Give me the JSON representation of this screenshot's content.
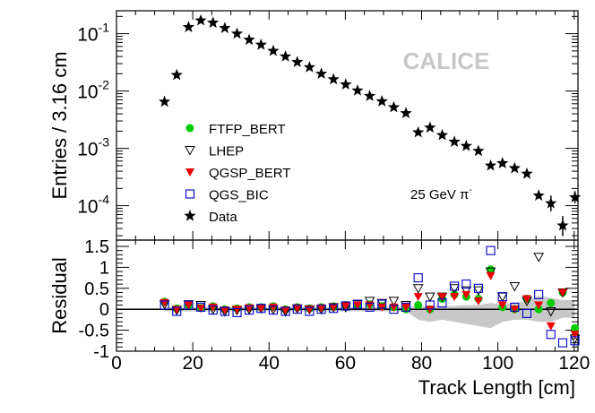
{
  "chart_data": [
    {
      "type": "scatter",
      "panel": "top",
      "ylabel": "Entries / 3.16 cm",
      "yscale": "log",
      "ylim_exp": [
        -4.6,
        -0.6
      ],
      "xlim": [
        0,
        121
      ],
      "y_ticks": [
        {
          "exp": -1,
          "mant": "10",
          "sup": "-1"
        },
        {
          "exp": -2,
          "mant": "10",
          "sup": "-2"
        },
        {
          "exp": -3,
          "mant": "10",
          "sup": "-3"
        },
        {
          "exp": -4,
          "mant": "10",
          "sup": "-4"
        }
      ],
      "watermark": "CALICE",
      "annotation": {
        "main": "25 GeV π",
        "sup": "-"
      },
      "legend_position": "left-bottom",
      "legend": [
        {
          "label": "FTFP_BERT",
          "marker": "circle",
          "color": "#00cc00"
        },
        {
          "label": "LHEP",
          "marker": "triangle-down-open",
          "color": "#000000"
        },
        {
          "label": "QGSP_BERT",
          "marker": "triangle-down",
          "color": "#ee0000"
        },
        {
          "label": "QGS_BIC",
          "marker": "square-open",
          "color": "#0000cc"
        },
        {
          "label": "Data",
          "marker": "star",
          "color": "#000000"
        }
      ],
      "series": [
        {
          "name": "Data",
          "x": [
            12.6,
            15.8,
            18.9,
            22.1,
            25.3,
            28.4,
            31.6,
            34.8,
            37.9,
            41.1,
            44.3,
            47.4,
            50.6,
            53.7,
            56.9,
            60.1,
            63.2,
            66.4,
            69.6,
            72.7,
            75.9,
            79.1,
            82.2,
            85.4,
            88.6,
            91.7,
            94.9,
            98.1,
            101.2,
            104.4,
            107.6,
            110.7,
            113.9,
            117.0,
            120.2
          ],
          "y": [
            0.0065,
            0.019,
            0.13,
            0.17,
            0.155,
            0.125,
            0.1,
            0.078,
            0.064,
            0.05,
            0.04,
            0.032,
            0.026,
            0.02,
            0.016,
            0.013,
            0.0102,
            0.0082,
            0.0066,
            0.0052,
            0.0041,
            0.0019,
            0.0023,
            0.0017,
            0.0013,
            0.0011,
            0.0009,
            0.0005,
            0.00055,
            0.00045,
            0.00036,
            0.00015,
            0.00011,
            4.5e-05,
            0.00014
          ]
        }
      ]
    },
    {
      "type": "scatter",
      "panel": "bottom",
      "xlabel": "Track Length [cm]",
      "ylabel": "Residual",
      "xlim": [
        0,
        121
      ],
      "ylim": [
        -1.0,
        1.65
      ],
      "x_ticks": [
        "0",
        "20",
        "40",
        "60",
        "80",
        "100",
        "120"
      ],
      "y_ticks": [
        "1.5",
        "1",
        "0.5",
        "0",
        "-0.5",
        "-1"
      ],
      "x_tick_values": [
        0,
        20,
        40,
        60,
        80,
        100,
        120
      ],
      "y_tick_values": [
        1.5,
        1,
        0.5,
        0,
        -0.5,
        -1
      ],
      "x": [
        12.6,
        15.8,
        18.9,
        22.1,
        25.3,
        28.4,
        31.6,
        34.8,
        37.9,
        41.1,
        44.3,
        47.4,
        50.6,
        53.7,
        56.9,
        60.1,
        63.2,
        66.4,
        69.6,
        72.7,
        75.9,
        79.1,
        82.2,
        85.4,
        88.6,
        91.7,
        94.9,
        98.1,
        101.2,
        104.4,
        107.6,
        110.7,
        113.9,
        117.0,
        120.2
      ],
      "band_upper": [
        0.05,
        0.05,
        0.05,
        0.05,
        0.05,
        0.05,
        0.05,
        0.05,
        0.05,
        0.05,
        0.05,
        0.05,
        0.05,
        0.05,
        0.05,
        0.05,
        0.05,
        0.05,
        0.05,
        0.05,
        0.05,
        0.08,
        0.07,
        0.08,
        0.08,
        0.1,
        0.1,
        0.15,
        0.12,
        0.15,
        0.2,
        0.32,
        0.27,
        0.22,
        0.22
      ],
      "band_lower": [
        -0.05,
        -0.05,
        -0.05,
        -0.05,
        -0.05,
        -0.05,
        -0.05,
        -0.05,
        -0.05,
        -0.05,
        -0.05,
        -0.05,
        -0.05,
        -0.05,
        -0.05,
        -0.05,
        -0.05,
        -0.05,
        -0.05,
        -0.05,
        -0.05,
        -0.25,
        -0.3,
        -0.25,
        -0.3,
        -0.35,
        -0.4,
        -0.45,
        -0.3,
        -0.25,
        -0.25,
        -0.3,
        -0.3,
        -0.2,
        -0.2
      ],
      "series": [
        {
          "name": "FTFP_BERT",
          "marker": "circle",
          "color": "#00cc00",
          "values": [
            0.18,
            0.02,
            0.1,
            0.03,
            0.07,
            0.0,
            0.02,
            0.05,
            0.05,
            0.07,
            0.0,
            0.05,
            0.02,
            0.05,
            0.07,
            0.1,
            0.1,
            0.12,
            0.08,
            0.05,
            0.0,
            0.1,
            0.0,
            0.25,
            0.35,
            0.3,
            0.25,
            0.95,
            0.05,
            0.0,
            0.25,
            0.0,
            0.15,
            0.4,
            -0.45
          ]
        },
        {
          "name": "LHEP",
          "marker": "triangle-down-open",
          "color": "#000000",
          "values": [
            0.12,
            -0.02,
            0.12,
            0.1,
            0.0,
            -0.05,
            -0.02,
            0.0,
            0.02,
            0.0,
            -0.05,
            0.02,
            0.0,
            0.0,
            0.05,
            0.05,
            0.12,
            0.2,
            0.15,
            0.2,
            0.1,
            0.5,
            0.3,
            0.3,
            0.5,
            0.45,
            0.45,
            0.9,
            0.3,
            0.55,
            0.2,
            1.25,
            -0.05,
            0.4,
            -0.7
          ]
        },
        {
          "name": "QGSP_BERT",
          "marker": "triangle-down",
          "color": "#ee0000",
          "values": [
            0.16,
            0.0,
            0.1,
            0.02,
            0.05,
            -0.02,
            0.0,
            0.03,
            0.02,
            0.05,
            -0.02,
            0.03,
            0.0,
            0.03,
            0.05,
            0.08,
            0.1,
            0.1,
            0.05,
            0.05,
            0.05,
            0.3,
            0.0,
            0.3,
            0.3,
            0.35,
            0.2,
            0.8,
            0.1,
            0.0,
            0.25,
            0.1,
            -0.4,
            0.4,
            -0.6
          ]
        },
        {
          "name": "QGS_BIC",
          "marker": "square-open",
          "color": "#0000cc",
          "values": [
            0.1,
            -0.05,
            0.1,
            0.05,
            -0.02,
            -0.05,
            -0.08,
            -0.02,
            0.02,
            -0.02,
            -0.05,
            0.0,
            -0.05,
            0.0,
            0.02,
            0.08,
            0.12,
            0.05,
            0.12,
            0.0,
            0.05,
            0.75,
            0.1,
            0.15,
            0.55,
            0.6,
            0.5,
            1.4,
            0.3,
            0.05,
            -0.1,
            0.35,
            -0.6,
            -0.8,
            -0.75
          ]
        }
      ]
    }
  ]
}
